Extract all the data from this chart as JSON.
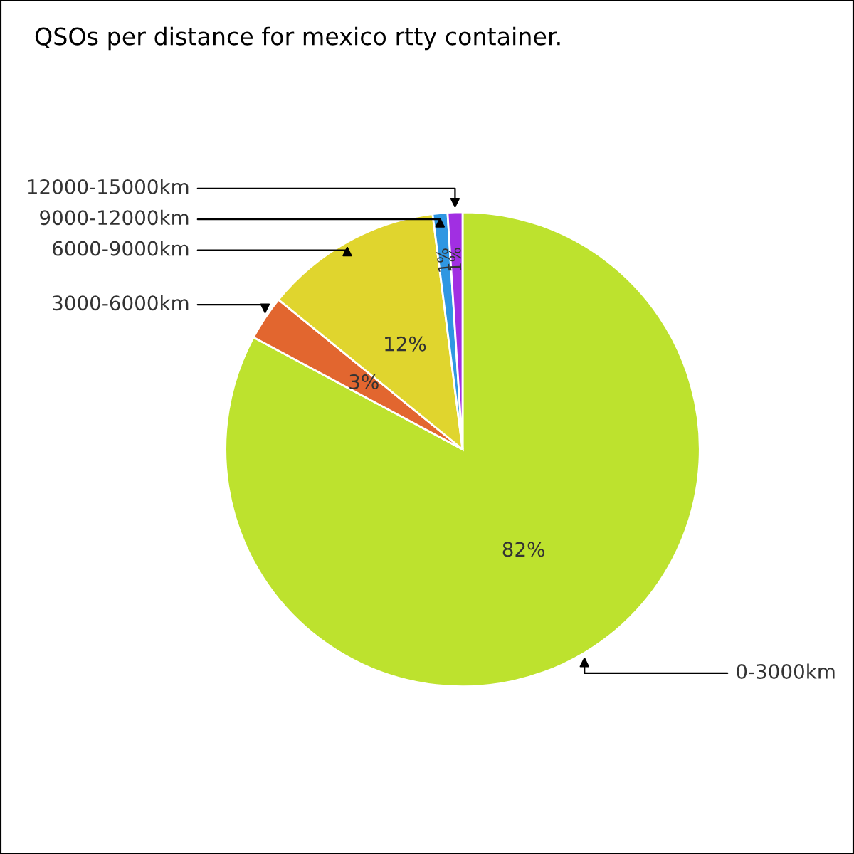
{
  "chart_data": {
    "type": "pie",
    "title": "QSOs per distance for mexico rtty container.",
    "categories": [
      "0-3000km",
      "3000-6000km",
      "6000-9000km",
      "9000-12000km",
      "12000-15000km"
    ],
    "values": [
      82,
      3,
      12,
      1,
      1
    ],
    "value_labels": [
      "82%",
      "3%",
      "12%",
      "1%",
      "1%"
    ],
    "colors": [
      "#bde22e",
      "#e2662f",
      "#e0d52e",
      "#2f97e2",
      "#a12fe2"
    ],
    "legend": false
  }
}
